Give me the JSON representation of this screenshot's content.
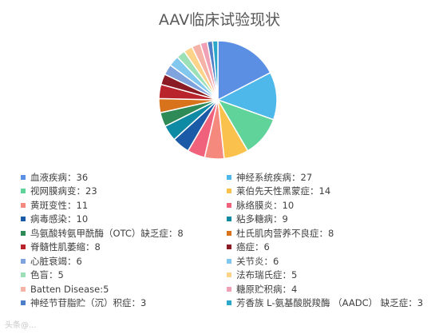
{
  "chart_data": {
    "type": "pie",
    "title": "AAV临床试验现状",
    "categories": [
      "血液疾病：36",
      "神经系统疾病：27",
      "视网膜病变：23",
      "莱伯先天性黑蒙症：14",
      "黄斑变性：11",
      "脉络膜炎：10",
      "病毒感染：10",
      "粘多糖病：9",
      "鸟氨酸转氨甲酰酶（OTC）缺乏症：8",
      "杜氏肌肉营养不良症：8",
      "脊髓性肌萎缩：8",
      "癌症：6",
      "心脏衰竭：6",
      "关节炎：6",
      "色盲：5",
      "法布瑞氏症：5",
      "Batten Disease:5",
      "糖原贮积病：4",
      "神经节苷脂贮（沉）积症：3",
      "芳香族 L-氨基酸脱羧酶 （AADC） 缺乏症：3"
    ],
    "values": [
      36,
      27,
      23,
      14,
      11,
      10,
      10,
      9,
      8,
      8,
      8,
      6,
      6,
      6,
      5,
      5,
      5,
      4,
      3,
      3
    ],
    "colors": [
      "#5b8fe3",
      "#4fb8ea",
      "#5fd39a",
      "#fbc14d",
      "#f6897e",
      "#f0627c",
      "#1b5aa6",
      "#0e8aa5",
      "#2e8b57",
      "#d8731c",
      "#b8232c",
      "#8a1a24",
      "#7fa3dc",
      "#82c8ee",
      "#9be0b6",
      "#fbd48a",
      "#f5b3a8",
      "#f0a1b6",
      "#4d7ec7",
      "#2ba7c9"
    ],
    "legend_position": "bottom"
  },
  "watermark": "头条@..."
}
